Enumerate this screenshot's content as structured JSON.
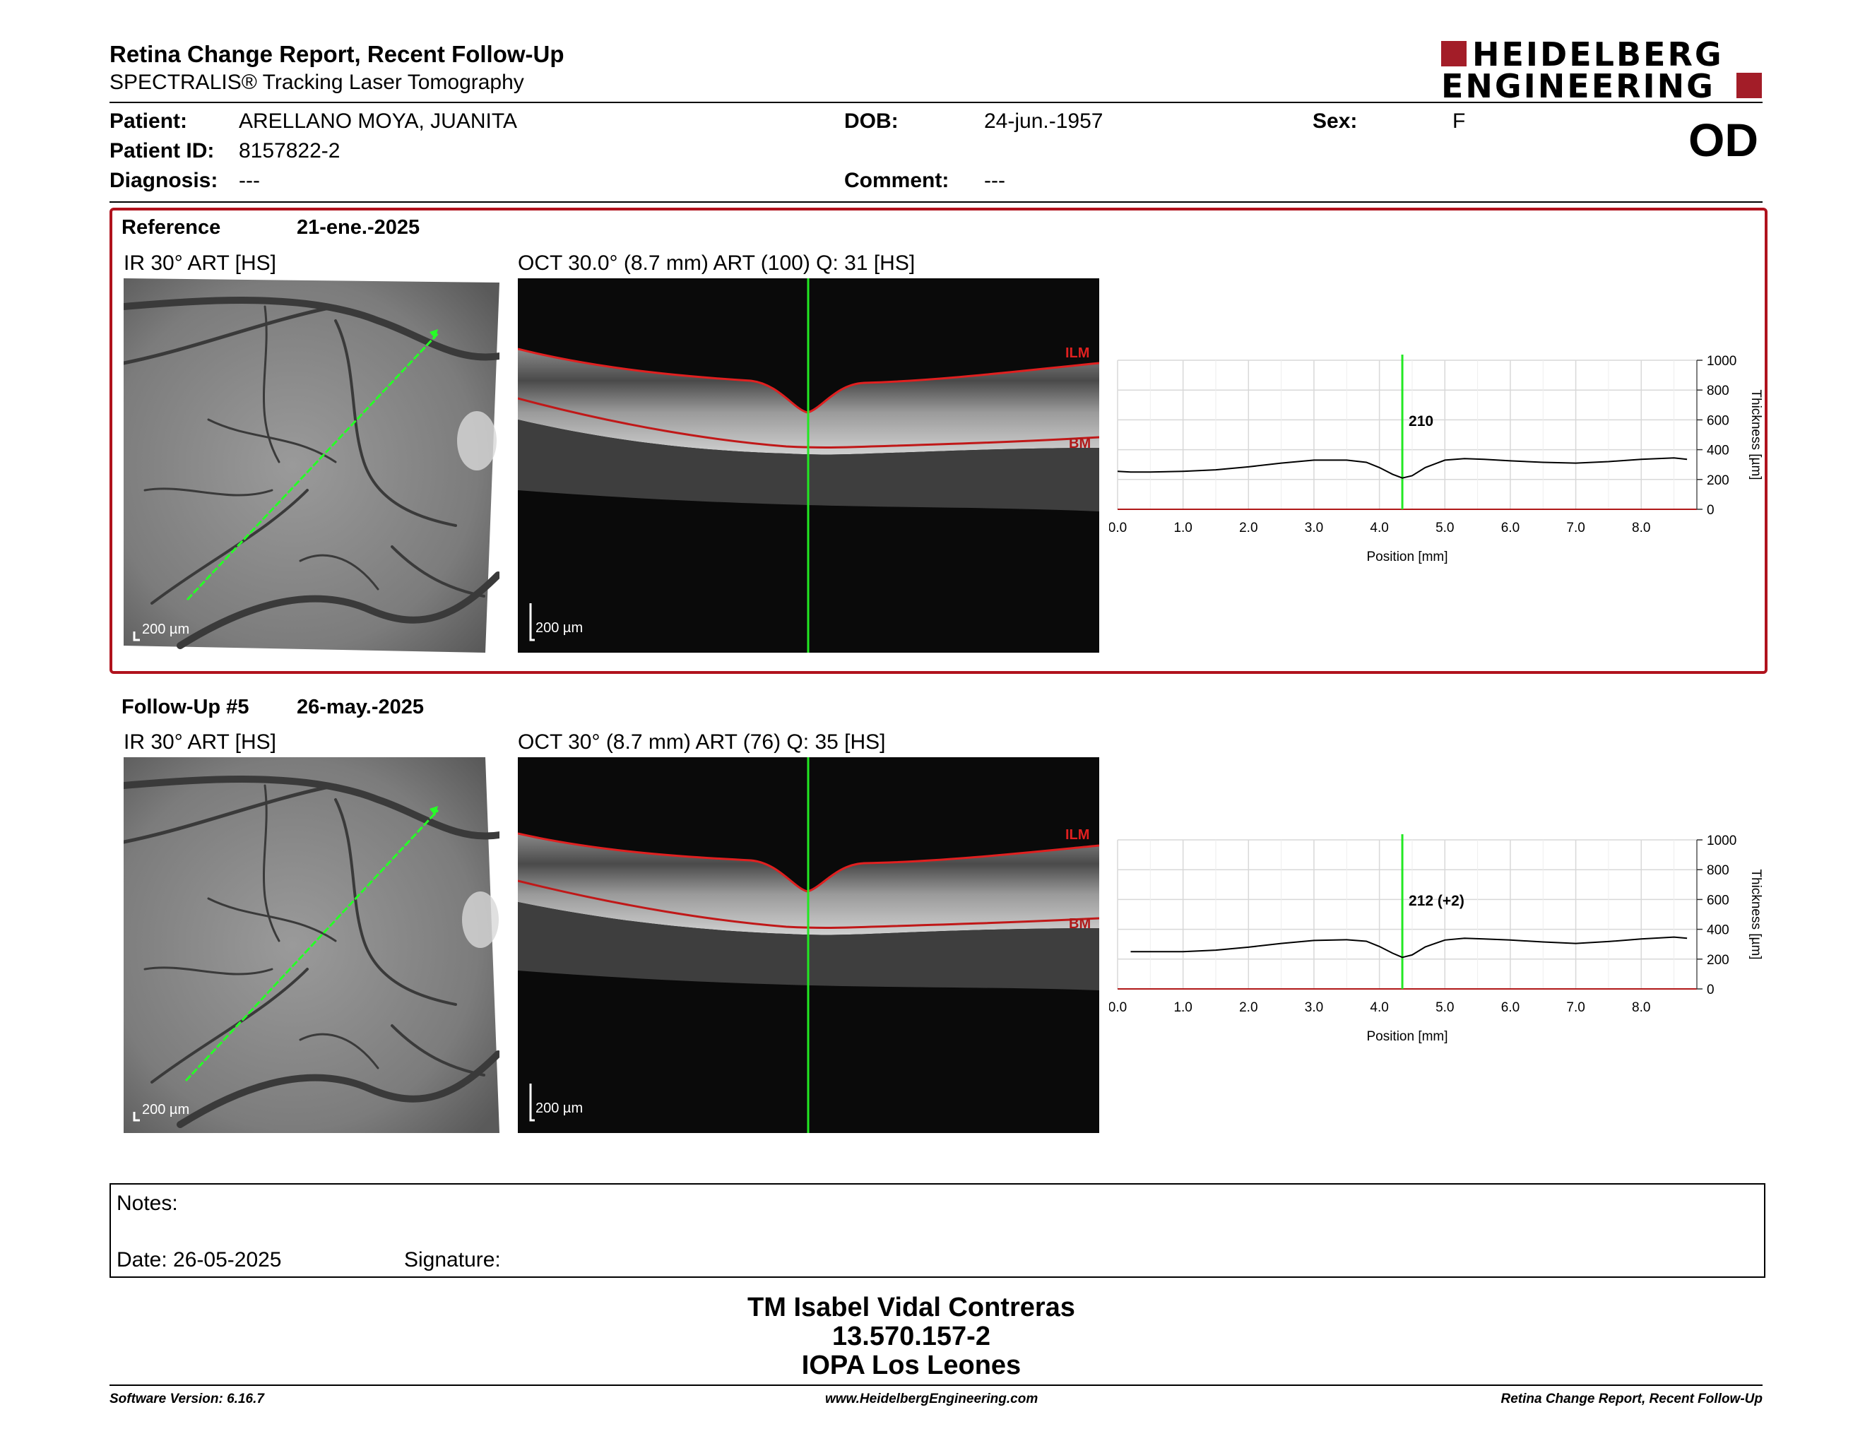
{
  "header": {
    "title": "Retina Change Report, Recent Follow-Up",
    "subtitle": "SPECTRALIS® Tracking Laser Tomography",
    "logo_line1": "HEIDELBERG",
    "logo_line2": "ENGINEERING",
    "eye": "OD"
  },
  "patient": {
    "patient_label": "Patient:",
    "patient_value": "ARELLANO MOYA, JUANITA",
    "id_label": "Patient ID:",
    "id_value": "8157822-2",
    "diagnosis_label": "Diagnosis:",
    "diagnosis_value": "---",
    "dob_label": "DOB:",
    "dob_value": "24-jun.-1957",
    "comment_label": "Comment:",
    "comment_value": "---",
    "sex_label": "Sex:",
    "sex_value": "F"
  },
  "reference": {
    "label": "Reference",
    "date": "21-ene.-2025",
    "ir_label": "IR 30° ART [HS]",
    "oct_label": "OCT 30.0° (8.7 mm) ART (100) Q: 31 [HS]",
    "scale": "200 µm",
    "ilm": "ILM",
    "bm": "BM",
    "marker_value": "210"
  },
  "followup": {
    "label": "Follow-Up #5",
    "date": "26-may.-2025",
    "ir_label": "IR 30° ART [HS]",
    "oct_label": "OCT 30° (8.7 mm) ART (76) Q: 35 [HS]",
    "scale": "200 µm",
    "ilm": "ILM",
    "bm": "BM",
    "marker_value": "212 (+2)"
  },
  "chart_data": [
    {
      "type": "line",
      "xlabel": "Position [mm]",
      "ylabel": "Thickness [µm]",
      "xlim": [
        0,
        8.7
      ],
      "ylim": [
        0,
        1000
      ],
      "x_ticks": [
        "0.0",
        "1.0",
        "2.0",
        "3.0",
        "4.0",
        "5.0",
        "6.0",
        "7.0",
        "8.0"
      ],
      "y_ticks": [
        "0",
        "200",
        "400",
        "600",
        "800",
        "1000"
      ],
      "marker_x": 4.35,
      "marker_label": "210",
      "x": [
        0.0,
        0.2,
        0.5,
        1.0,
        1.5,
        2.0,
        2.5,
        3.0,
        3.5,
        3.8,
        4.0,
        4.2,
        4.35,
        4.5,
        4.7,
        5.0,
        5.3,
        5.6,
        6.0,
        6.5,
        7.0,
        7.5,
        8.0,
        8.5,
        8.7
      ],
      "y": [
        255,
        250,
        250,
        255,
        265,
        285,
        310,
        330,
        330,
        315,
        280,
        235,
        210,
        225,
        280,
        330,
        340,
        335,
        325,
        315,
        310,
        320,
        335,
        345,
        335
      ]
    },
    {
      "type": "line",
      "xlabel": "Position [mm]",
      "ylabel": "Thickness [µm]",
      "xlim": [
        0,
        8.7
      ],
      "ylim": [
        0,
        1000
      ],
      "x_ticks": [
        "0.0",
        "1.0",
        "2.0",
        "3.0",
        "4.0",
        "5.0",
        "6.0",
        "7.0",
        "8.0"
      ],
      "y_ticks": [
        "0",
        "200",
        "400",
        "600",
        "800",
        "1000"
      ],
      "marker_x": 4.35,
      "marker_label": "212 (+2)",
      "x": [
        0.2,
        0.5,
        1.0,
        1.5,
        2.0,
        2.5,
        3.0,
        3.5,
        3.8,
        4.0,
        4.2,
        4.35,
        4.5,
        4.7,
        5.0,
        5.3,
        5.6,
        6.0,
        6.5,
        7.0,
        7.5,
        8.0,
        8.5,
        8.7
      ],
      "y": [
        250,
        250,
        250,
        260,
        280,
        305,
        325,
        330,
        320,
        285,
        240,
        212,
        228,
        282,
        328,
        340,
        335,
        328,
        315,
        305,
        318,
        335,
        348,
        340
      ]
    }
  ],
  "notes": {
    "label": "Notes:",
    "date_label": "Date: 26-05-2025",
    "signature_label": "Signature:"
  },
  "signer": {
    "name": "TM Isabel Vidal Contreras",
    "rut": "13.570.157-2",
    "org": "IOPA Los Leones"
  },
  "footer": {
    "software": "Software Version: 6.16.7",
    "website": "www.HeidelbergEngineering.com",
    "report": "Retina Change Report, Recent Follow-Up"
  }
}
